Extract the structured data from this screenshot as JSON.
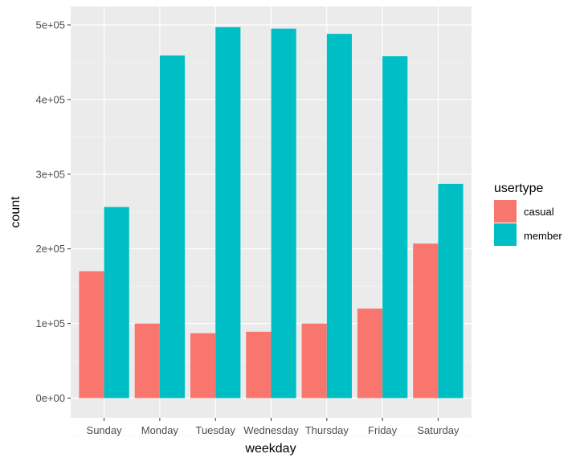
{
  "chart_data": {
    "type": "bar",
    "categories": [
      "Sunday",
      "Monday",
      "Tuesday",
      "Wednesday",
      "Thursday",
      "Friday",
      "Saturday"
    ],
    "series": [
      {
        "name": "casual",
        "color": "#F8766D",
        "values": [
          170000,
          100000,
          87000,
          89000,
          100000,
          120000,
          207000
        ]
      },
      {
        "name": "member",
        "color": "#00BFC4",
        "values": [
          256000,
          459000,
          497000,
          495000,
          488000,
          458000,
          287000
        ]
      }
    ],
    "xlabel": "weekday",
    "ylabel": "count",
    "ylim": [
      0,
      520000
    ],
    "yticks": [
      0,
      100000,
      200000,
      300000,
      400000,
      500000
    ],
    "ytick_labels": [
      "0e+00",
      "1e+05",
      "2e+05",
      "3e+05",
      "4e+05",
      "5e+05"
    ],
    "legend": {
      "title": "usertype",
      "placement": "right"
    },
    "grid": true,
    "panel_background": "#EBEBEB"
  }
}
